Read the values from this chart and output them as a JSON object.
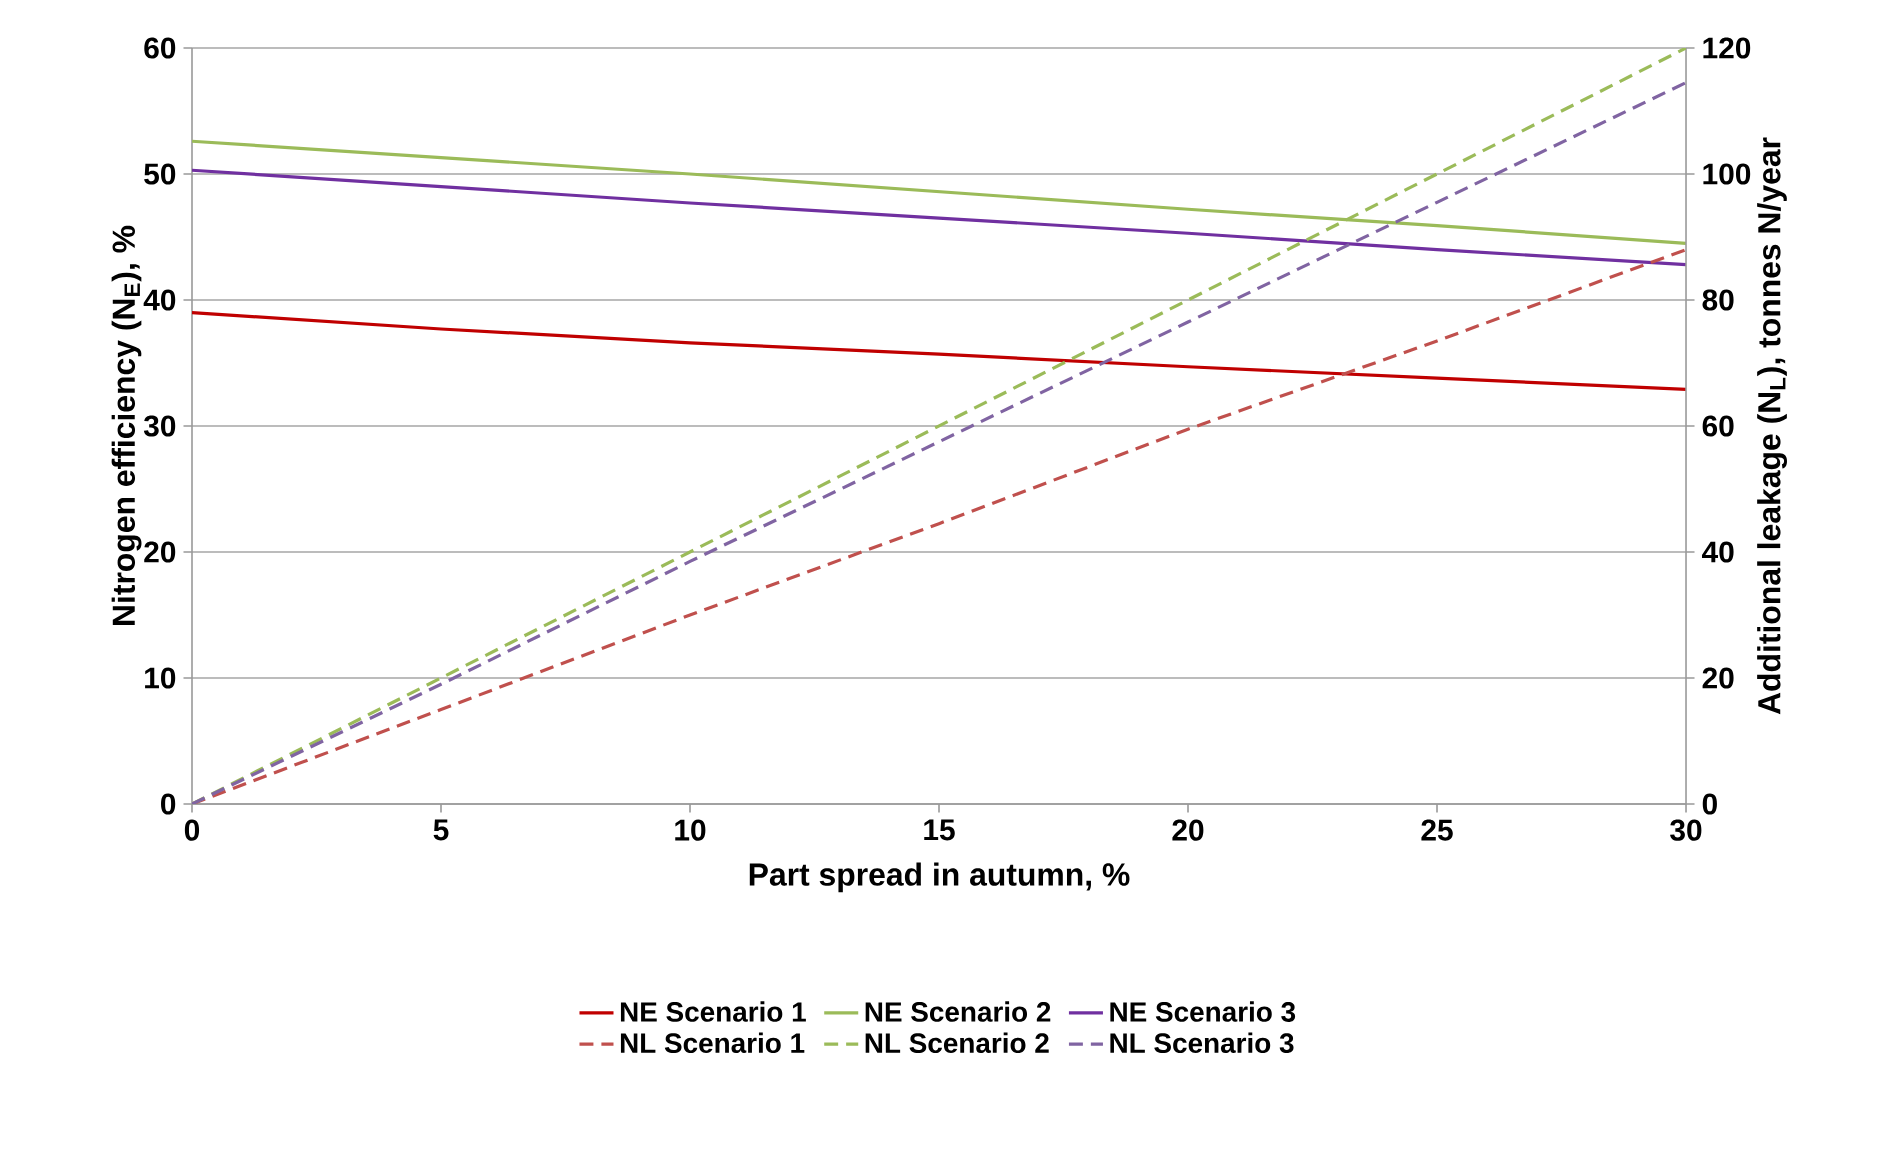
{
  "chart_data": {
    "type": "line",
    "xlabel": "Part spread in autumn, %",
    "ylabel": "Nitrogen efficiency (N$_{E}$), %",
    "y2label": "Additional leakage (N$_{L}$), tonnes N/year",
    "x": [
      0,
      5,
      10,
      15,
      20,
      25,
      30
    ],
    "xlim": [
      0,
      30
    ],
    "xticks": [
      0,
      5,
      10,
      15,
      20,
      25,
      30
    ],
    "ylim": [
      0,
      60
    ],
    "yticks": [
      0,
      10,
      20,
      30,
      40,
      50,
      60
    ],
    "y2lim": [
      0,
      120
    ],
    "y2ticks": [
      0,
      20,
      40,
      60,
      80,
      100,
      120
    ],
    "grid": "y",
    "legend": "bottom",
    "marker": "none",
    "series": [
      {
        "name": "NE Scenario 1",
        "color": "#c00000",
        "line_style": "solid",
        "values": [
          39.0,
          37.7,
          36.6,
          35.7,
          34.7,
          33.8,
          32.9
        ]
      },
      {
        "name": "NE Scenario 2",
        "color": "#9bbb59",
        "line_style": "solid",
        "values": [
          52.6,
          51.3,
          50.0,
          48.6,
          47.2,
          45.9,
          44.5
        ]
      },
      {
        "name": "NE Scenario 3",
        "color": "#7030a0",
        "line_style": "solid",
        "values": [
          50.3,
          49.0,
          47.7,
          46.5,
          45.3,
          44.0,
          42.8
        ]
      },
      {
        "name": "NL Scenario 1",
        "color": "#c0504d",
        "line_style": "dashed",
        "axis": "y2",
        "values": [
          0,
          15,
          30,
          44.5,
          59.5,
          73.5,
          88
        ]
      },
      {
        "name": "NL Scenario 2",
        "color": "#9bbb59",
        "line_style": "dashed",
        "axis": "y2",
        "values": [
          0,
          20,
          40,
          60,
          80,
          100,
          120
        ]
      },
      {
        "name": "NL Scenario 3",
        "color": "#8064a2",
        "line_style": "dashed",
        "axis": "y2",
        "values": [
          0,
          19,
          38.5,
          57.5,
          76.5,
          95.5,
          114.5
        ]
      }
    ]
  }
}
